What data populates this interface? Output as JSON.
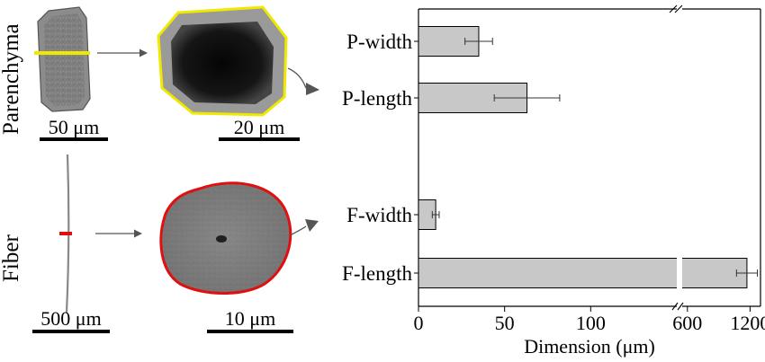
{
  "figure": {
    "parenchyma_label": "Parenchyma",
    "fiber_label": "Fiber",
    "scale_bars": {
      "parenchyma_cell": "50 μm",
      "parenchyma_cross_section": "20 μm",
      "fiber_cell": "500 μm",
      "fiber_cross_section": "10 μm"
    },
    "colors": {
      "parenchyma_outline": "#f0e800",
      "fiber_outline": "#e01010",
      "bar_fill": "#c8c8c8"
    }
  },
  "chart_data": {
    "type": "bar",
    "orientation": "horizontal",
    "categories": [
      "P-width",
      "P-length",
      "F-width",
      "F-length"
    ],
    "values": [
      35,
      63,
      10,
      1170
    ],
    "errors": [
      8,
      19,
      2,
      100
    ],
    "xlabel": "Dimension (μm)",
    "broken_axis": {
      "segment1": [
        0,
        150
      ],
      "segment2": [
        550,
        1300
      ]
    },
    "ticks": [
      0,
      50,
      100,
      600,
      1200
    ],
    "tick_labels": [
      "0",
      "50",
      "100",
      "600",
      "1200"
    ],
    "grid": false,
    "legend": "none"
  }
}
